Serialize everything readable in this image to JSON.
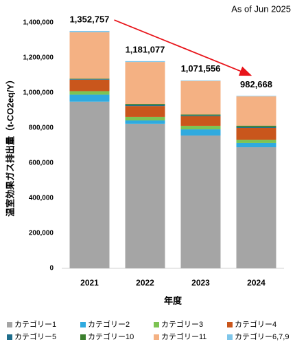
{
  "chart_data": {
    "type": "stacked_bar",
    "subtitle": "As of Jun 2025",
    "y_label": "温室効果ガス排出量（t-CO2eq/Y）",
    "x_label": "年度",
    "categories": [
      "2021",
      "2022",
      "2023",
      "2024"
    ],
    "ylim": [
      0,
      1400000
    ],
    "yticks": [
      0,
      {
        "value": 200000,
        "label": "200,000"
      },
      {
        "value": 400000,
        "label": "400,000"
      },
      {
        "value": 600000,
        "label": "600,000"
      },
      {
        "value": 800000,
        "label": "800,000"
      },
      {
        "value": 1000000,
        "label": "1,000,000"
      },
      {
        "value": 1200000,
        "label": "1,200,000"
      },
      {
        "value": 1400000,
        "label": "1,400,000"
      }
    ],
    "series": [
      {
        "name": "カテゴリー1",
        "color": "#a5a5a5",
        "values": [
          950000,
          824000,
          757000,
          690000
        ]
      },
      {
        "name": "カテゴリー2",
        "color": "#2faadf",
        "values": [
          40000,
          19000,
          35000,
          24000
        ]
      },
      {
        "name": "カテゴリー3",
        "color": "#7dc353",
        "values": [
          20000,
          20000,
          20000,
          19000
        ]
      },
      {
        "name": "カテゴリー4",
        "color": "#c9561c",
        "values": [
          65000,
          62000,
          55000,
          67000
        ]
      },
      {
        "name": "カテゴリー5",
        "color": "#1f6e8c",
        "values": [
          3000,
          6000,
          5000,
          5000
        ]
      },
      {
        "name": "カテゴリー10",
        "color": "#3b7f2d",
        "values": [
          3000,
          6000,
          5000,
          8000
        ]
      },
      {
        "name": "カテゴリー11",
        "color": "#f4b183",
        "values": [
          265000,
          239000,
          191000,
          167000
        ]
      },
      {
        "name": "カテゴリー6,7,9",
        "color": "#7fc6ea",
        "values": [
          7000,
          5000,
          3000,
          3000
        ]
      }
    ],
    "totals": {
      "values": [
        1352757,
        1181077,
        1071556,
        982668
      ],
      "value_labels": [
        "1,352,757",
        "1,181,077",
        "1,071,556",
        "982,668"
      ]
    }
  }
}
